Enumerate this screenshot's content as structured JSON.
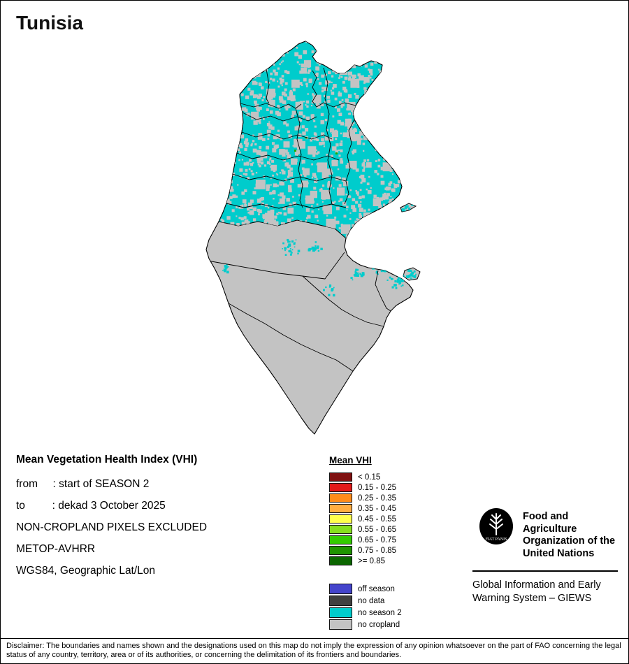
{
  "page": {
    "title": "Tunisia"
  },
  "info": {
    "heading": "Mean Vegetation Health Index (VHI)",
    "lines": [
      "from     : start of SEASON 2",
      "to         : dekad 3 October 2025",
      "NON-CROPLAND PIXELS EXCLUDED",
      "METOP-AVHRR",
      "WGS84, Geographic Lat/Lon"
    ]
  },
  "legend": {
    "title": "Mean VHI",
    "classes": [
      {
        "label": "< 0.15",
        "color": "#7f1010"
      },
      {
        "label": "0.15 - 0.25",
        "color": "#e31a1a"
      },
      {
        "label": "0.25 - 0.35",
        "color": "#ff8c1a"
      },
      {
        "label": "0.35 - 0.45",
        "color": "#ffae42"
      },
      {
        "label": "0.45 - 0.55",
        "color": "#ffff4d"
      },
      {
        "label": "0.55 - 0.65",
        "color": "#86e01e"
      },
      {
        "label": "0.65 - 0.75",
        "color": "#33cc00"
      },
      {
        "label": "0.75 - 0.85",
        "color": "#1f9400"
      },
      {
        "label": ">= 0.85",
        "color": "#0b6600"
      }
    ],
    "extra": [
      {
        "label": "off season",
        "color": "#4444cc"
      },
      {
        "label": "no data",
        "color": "#404040"
      },
      {
        "label": "no season 2",
        "color": "#00cccc"
      },
      {
        "label": "no cropland",
        "color": "#c3c3c3"
      }
    ]
  },
  "map": {
    "country": "Tunisia",
    "colors": {
      "cropland_no_season2": "#00cccc",
      "no_cropland": "#c3c3c3",
      "border": "#000000",
      "vhi_dot_green": "#22aa00"
    }
  },
  "fao": {
    "logo_text": "FAO",
    "logo_motto": "FIAT PANIS",
    "org_lines": [
      "Food and Agriculture",
      "Organization of the",
      "United Nations"
    ],
    "giews_lines": [
      "Global Information and Early",
      "Warning System – GIEWS"
    ]
  },
  "disclaimer": "Disclaimer: The boundaries and names shown and the designations used on this map do not imply the expression of any opinion whatsoever on the part of FAO concerning the legal status of any country, territory, area or of its authorities, or concerning the delimitation of its frontiers and boundaries."
}
